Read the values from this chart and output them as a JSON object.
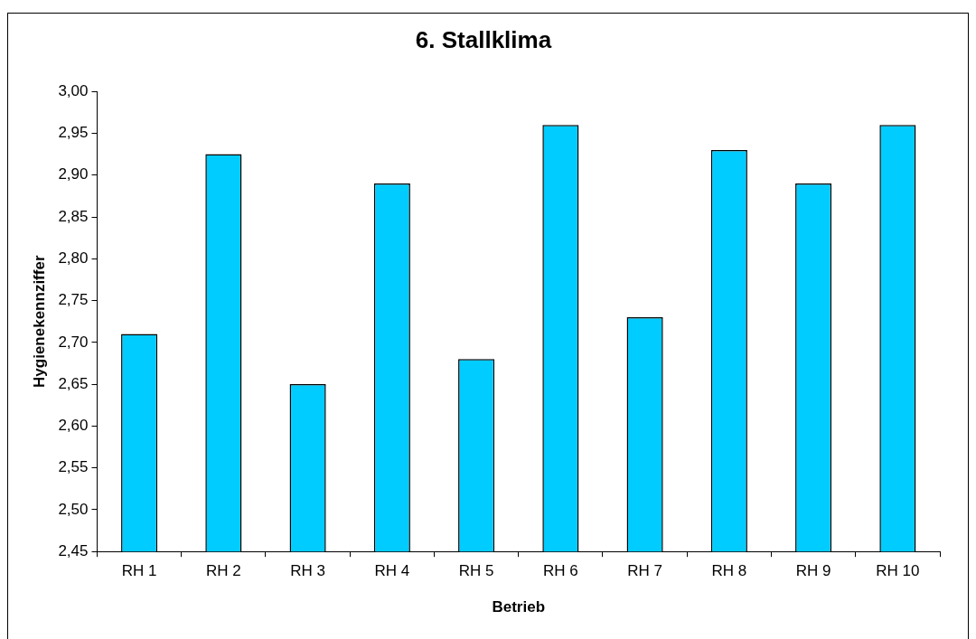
{
  "chart_data": {
    "type": "bar",
    "title": "6. Stallklima",
    "xlabel": "Betrieb",
    "ylabel": "Hygienekennziffer",
    "categories": [
      "RH 1",
      "RH 2",
      "RH 3",
      "RH 4",
      "RH 5",
      "RH 6",
      "RH 7",
      "RH 8",
      "RH 9",
      "RH 10"
    ],
    "values": [
      2.71,
      2.925,
      2.65,
      2.89,
      2.68,
      2.96,
      2.73,
      2.93,
      2.89,
      2.96
    ],
    "color": "#00ccff",
    "ylim": [
      2.45,
      3.0
    ],
    "yticks": [
      {
        "value": 2.45,
        "label": "2,45"
      },
      {
        "value": 2.5,
        "label": "2,50"
      },
      {
        "value": 2.55,
        "label": "2,55"
      },
      {
        "value": 2.6,
        "label": "2,60"
      },
      {
        "value": 2.65,
        "label": "2,65"
      },
      {
        "value": 2.7,
        "label": "2,70"
      },
      {
        "value": 2.75,
        "label": "2,75"
      },
      {
        "value": 2.8,
        "label": "2,80"
      },
      {
        "value": 2.85,
        "label": "2,85"
      },
      {
        "value": 2.9,
        "label": "2,90"
      },
      {
        "value": 2.95,
        "label": "2,95"
      },
      {
        "value": 3.0,
        "label": "3,00"
      }
    ],
    "grid": false,
    "legend": false
  }
}
